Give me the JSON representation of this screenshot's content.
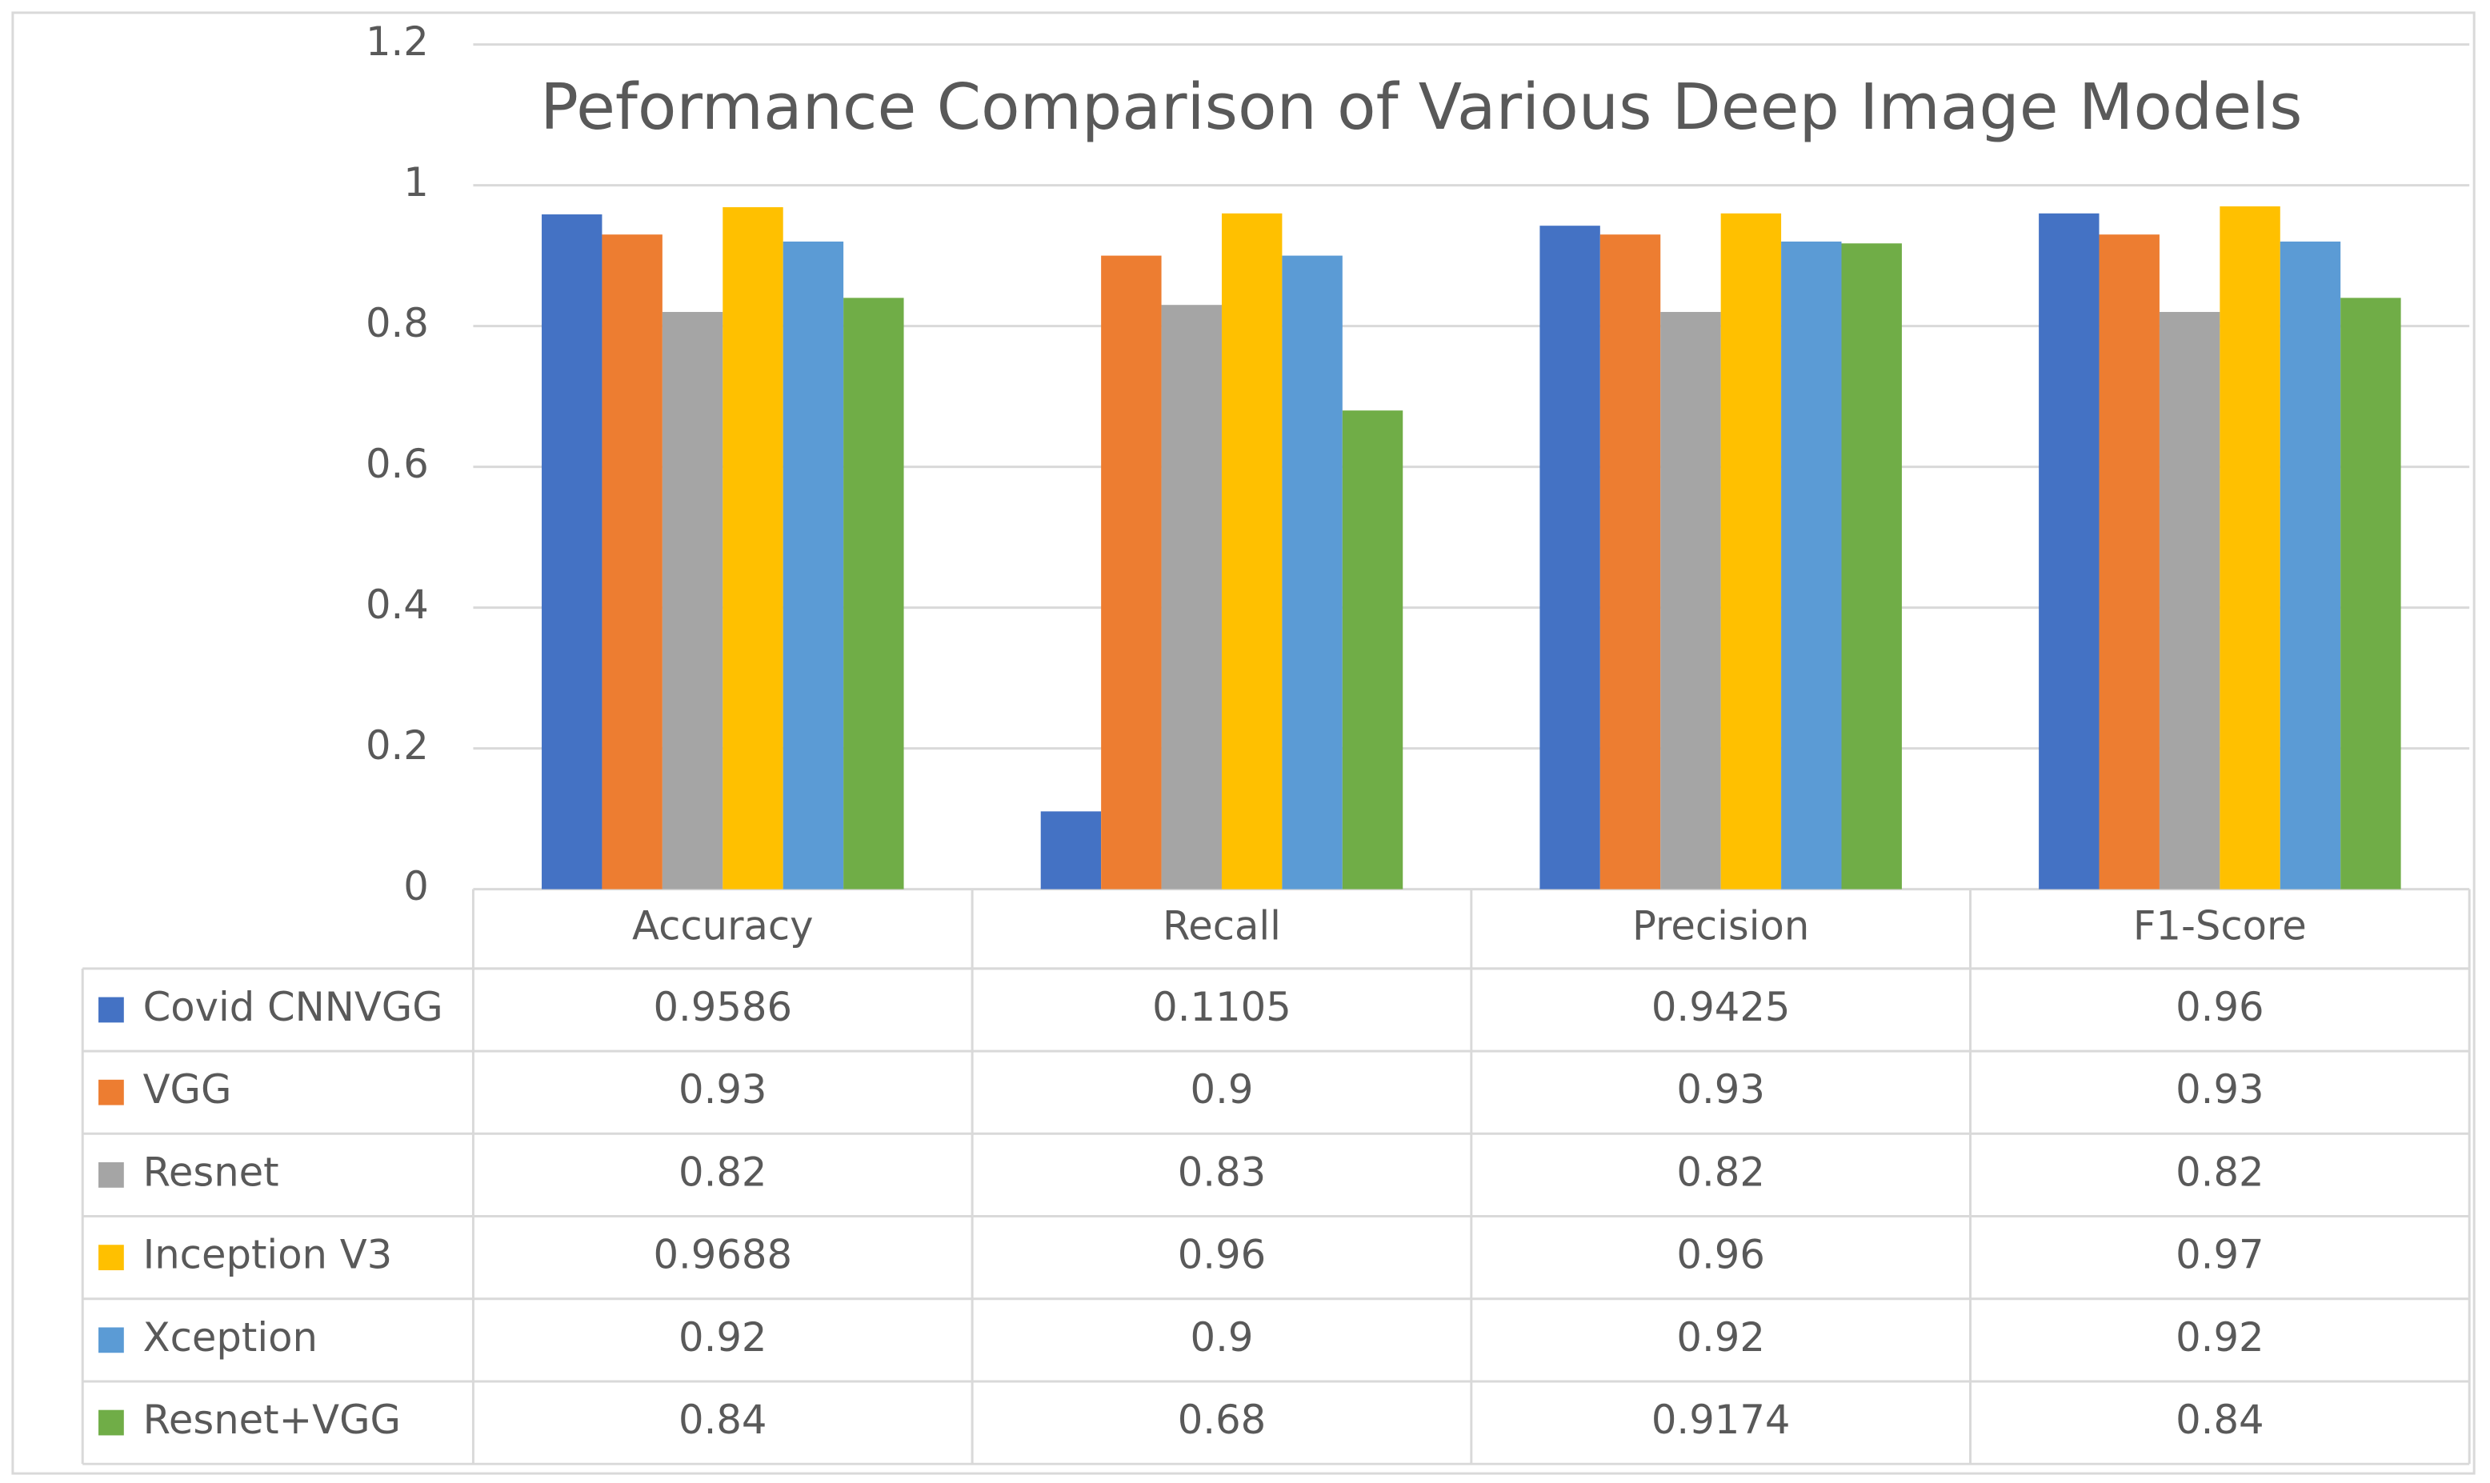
{
  "chart_data": {
    "type": "bar",
    "title": "Peformance Comparison of Various Deep Image Models",
    "categories": [
      "Accuracy",
      "Recall",
      "Precision",
      "F1-Score"
    ],
    "series": [
      {
        "name": "Covid CNNVGG",
        "color": "#4472c4",
        "values": [
          0.9586,
          0.1105,
          0.9425,
          0.96
        ]
      },
      {
        "name": "VGG",
        "color": "#ed7d31",
        "values": [
          0.93,
          0.9,
          0.93,
          0.93
        ]
      },
      {
        "name": "Resnet",
        "color": "#a5a5a5",
        "values": [
          0.82,
          0.83,
          0.82,
          0.82
        ]
      },
      {
        "name": "Inception V3",
        "color": "#ffc000",
        "values": [
          0.9688,
          0.96,
          0.96,
          0.97
        ]
      },
      {
        "name": "Xception",
        "color": "#5b9bd5",
        "values": [
          0.92,
          0.9,
          0.92,
          0.92
        ]
      },
      {
        "name": "Resnet+VGG",
        "color": "#70ad47",
        "values": [
          0.84,
          0.68,
          0.9174,
          0.84
        ]
      }
    ],
    "ylim": [
      0,
      1.2
    ],
    "yticks": [
      0,
      0.2,
      0.4,
      0.6,
      0.8,
      1,
      1.2
    ],
    "grid": true
  }
}
